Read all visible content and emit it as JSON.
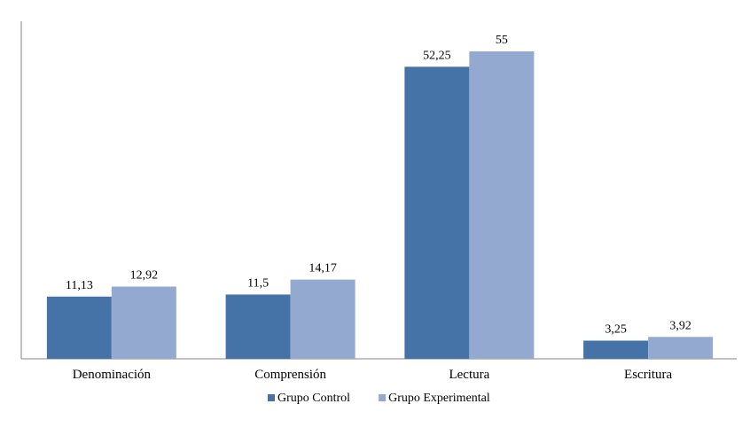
{
  "chart_data": {
    "type": "bar",
    "title": "",
    "xlabel": "",
    "ylabel": "",
    "categories": [
      "Denominación",
      "Comprensión",
      "Lectura",
      "Escritura"
    ],
    "series": [
      {
        "name": "Grupo Control",
        "values": [
          11.13,
          11.5,
          52.25,
          3.25
        ],
        "labels": [
          "11,13",
          "11,5",
          "52,25",
          "3,25"
        ],
        "color": "#4572A7"
      },
      {
        "name": "Grupo Experimental",
        "values": [
          12.92,
          14.17,
          55,
          3.92
        ],
        "labels": [
          "12,92",
          "14,17",
          "55",
          "3,92"
        ],
        "color": "#93A9CF"
      }
    ],
    "ylim": [
      0,
      60
    ],
    "grid": false,
    "legend": "bottom"
  }
}
